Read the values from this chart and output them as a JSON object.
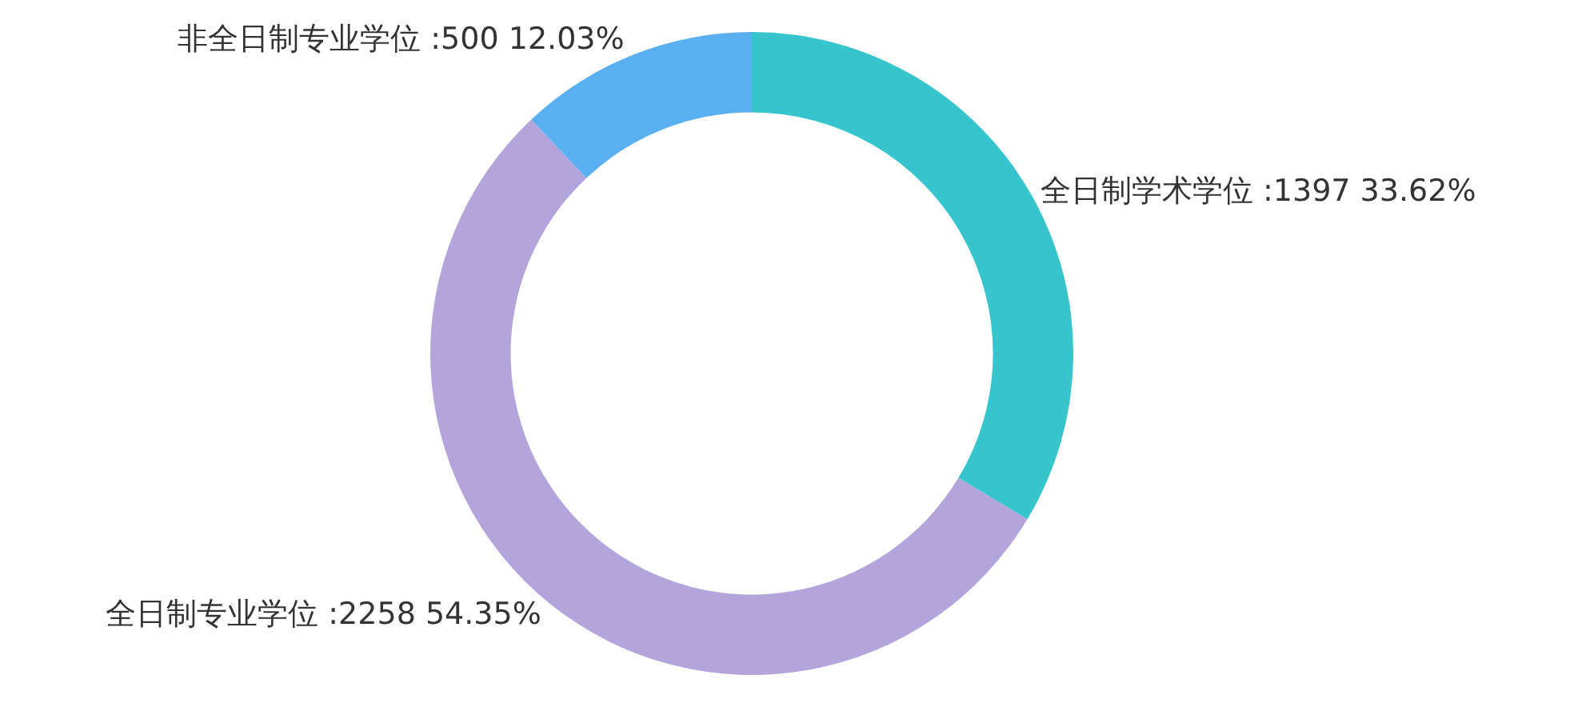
{
  "chart_data": {
    "type": "donut",
    "categories": [
      "全日制学术学位",
      "全日制专业学位",
      "非全日制专业学位"
    ],
    "values": [
      1397,
      2258,
      500
    ],
    "colors": [
      "#36c5cc",
      "#b3a4dc",
      "#5aaff0"
    ],
    "value_labels": [
      ":1397 33.62%",
      ":2258 54.35%",
      ":500 12.03%"
    ],
    "legend": false
  }
}
